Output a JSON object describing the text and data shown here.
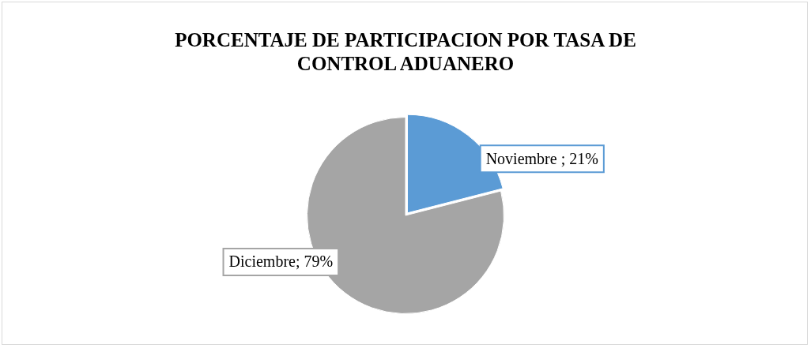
{
  "chart_data": {
    "type": "pie",
    "title": "PORCENTAJE DE PARTICIPACION POR TASA DE CONTROL ADUANERO",
    "categories": [
      "Noviembre ",
      "Diciembre"
    ],
    "values": [
      21,
      79
    ],
    "colors": [
      "#5b9bd5",
      "#a5a5a5"
    ],
    "value_labels": [
      "; 21%",
      "; 79%"
    ],
    "legend": false
  }
}
